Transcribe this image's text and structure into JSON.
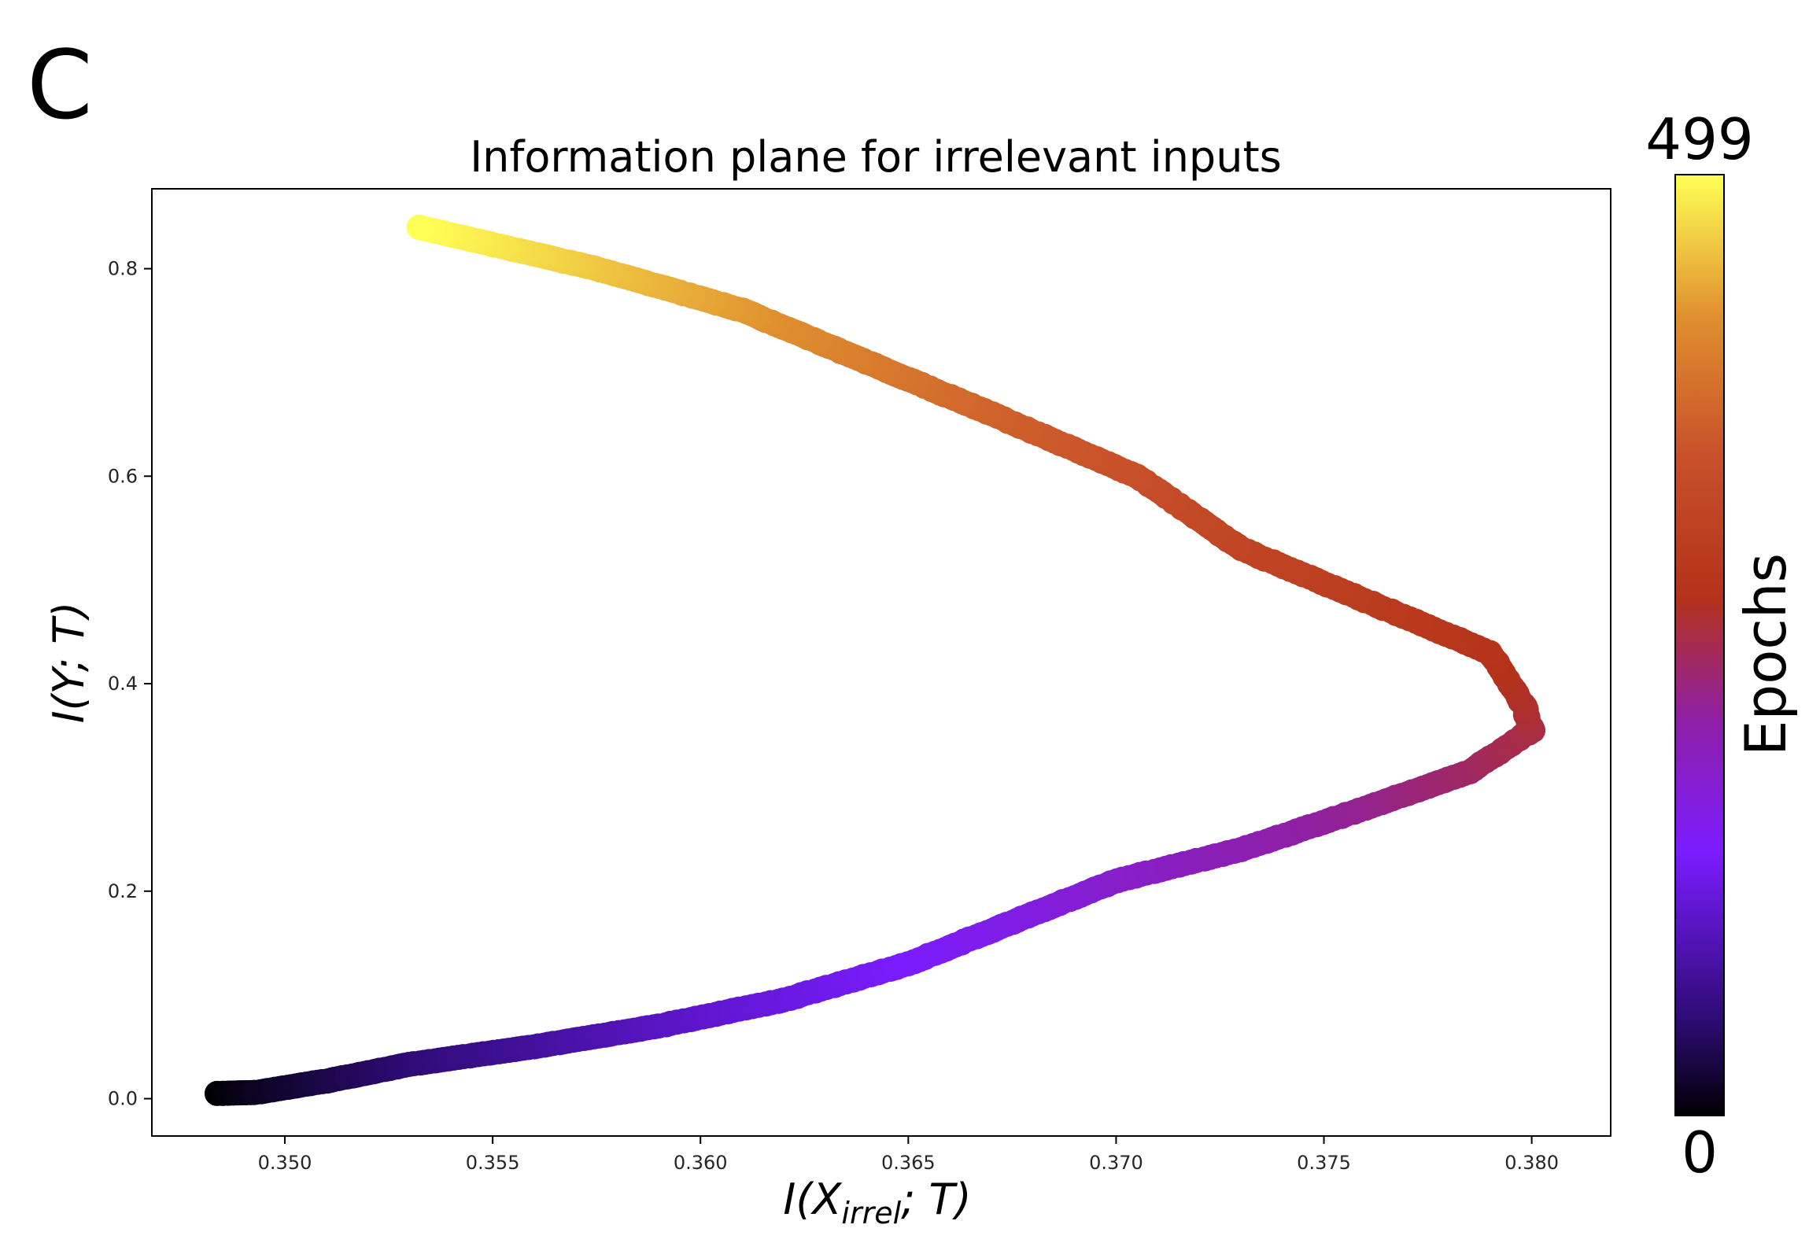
{
  "panel_letter": "C",
  "chart_data": {
    "type": "scatter",
    "title": "Information plane for irrelevant inputs",
    "xlabel": {
      "main": "I(X",
      "sub": "irrel",
      "tail": "; T)"
    },
    "ylabel": "I(Y; T)",
    "xlim": [
      0.3468,
      0.3819
    ],
    "ylim": [
      -0.036,
      0.877
    ],
    "x_ticks": [
      0.35,
      0.355,
      0.36,
      0.365,
      0.37,
      0.375,
      0.38
    ],
    "x_tick_labels": [
      "0.350",
      "0.355",
      "0.360",
      "0.365",
      "0.370",
      "0.375",
      "0.380"
    ],
    "y_ticks": [
      0.0,
      0.2,
      0.4,
      0.6,
      0.8
    ],
    "y_tick_labels": [
      "0.0",
      "0.2",
      "0.4",
      "0.6",
      "0.8"
    ],
    "grid": false,
    "colormap": "plasma-like (black → purple → red → orange → yellow)",
    "colorbar": {
      "label": "Epochs",
      "min": 0,
      "max": 499,
      "min_label": "0",
      "max_label": "499"
    },
    "colors": {
      "c0": "#000004",
      "c1": "#2d0b73",
      "c2": "#7a1cff",
      "c3": "#8e1fa6",
      "c4": "#b3321a",
      "c5": "#c8502a",
      "c6": "#e0902f",
      "c7": "#ffff55"
    },
    "trajectory_keypoints": [
      {
        "epoch": 0,
        "x": 0.3484,
        "y": 0.005
      },
      {
        "epoch": 12,
        "x": 0.3493,
        "y": 0.006
      },
      {
        "epoch": 30,
        "x": 0.351,
        "y": 0.017
      },
      {
        "epoch": 50,
        "x": 0.353,
        "y": 0.033
      },
      {
        "epoch": 75,
        "x": 0.356,
        "y": 0.05
      },
      {
        "epoch": 100,
        "x": 0.359,
        "y": 0.07
      },
      {
        "epoch": 120,
        "x": 0.362,
        "y": 0.095
      },
      {
        "epoch": 140,
        "x": 0.365,
        "y": 0.13
      },
      {
        "epoch": 160,
        "x": 0.3675,
        "y": 0.17
      },
      {
        "epoch": 180,
        "x": 0.37,
        "y": 0.21
      },
      {
        "epoch": 200,
        "x": 0.373,
        "y": 0.24
      },
      {
        "epoch": 220,
        "x": 0.376,
        "y": 0.28
      },
      {
        "epoch": 240,
        "x": 0.3785,
        "y": 0.315
      },
      {
        "epoch": 255,
        "x": 0.38,
        "y": 0.355
      },
      {
        "epoch": 265,
        "x": 0.3798,
        "y": 0.38
      },
      {
        "epoch": 280,
        "x": 0.379,
        "y": 0.43
      },
      {
        "epoch": 300,
        "x": 0.376,
        "y": 0.48
      },
      {
        "epoch": 320,
        "x": 0.373,
        "y": 0.53
      },
      {
        "epoch": 345,
        "x": 0.3705,
        "y": 0.6
      },
      {
        "epoch": 370,
        "x": 0.367,
        "y": 0.66
      },
      {
        "epoch": 400,
        "x": 0.364,
        "y": 0.71
      },
      {
        "epoch": 430,
        "x": 0.361,
        "y": 0.76
      },
      {
        "epoch": 460,
        "x": 0.3575,
        "y": 0.8
      },
      {
        "epoch": 499,
        "x": 0.3532,
        "y": 0.84
      }
    ]
  }
}
